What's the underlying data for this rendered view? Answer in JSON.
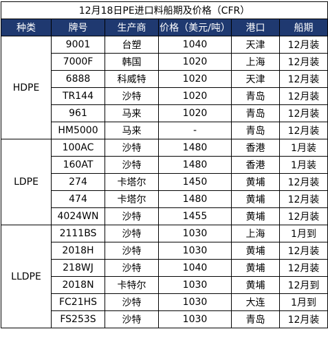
{
  "title": "12月18日PE进口料船期及价格（CFR）",
  "headers": [
    "种类",
    "牌号",
    "生产商",
    "价格（美元/吨）",
    "港口",
    "船期"
  ],
  "groups": [
    {
      "category": "HDPE",
      "rows": [
        {
          "grade": "9001",
          "producer": "台塑",
          "price": "1040",
          "port": "天津",
          "shipping": "12月装"
        },
        {
          "grade": "7000F",
          "producer": "韩国",
          "price": "1020",
          "port": "上海",
          "shipping": "12月装"
        },
        {
          "grade": "6888",
          "producer": "科威特",
          "price": "1020",
          "port": "天津",
          "shipping": "12月装"
        },
        {
          "grade": "TR144",
          "producer": "沙特",
          "price": "1020",
          "port": "青岛",
          "shipping": "12月装"
        },
        {
          "grade": "961",
          "producer": "马来",
          "price": "1020",
          "port": "青岛",
          "shipping": "12月装"
        },
        {
          "grade": "HM5000",
          "producer": "马来",
          "price": "-",
          "port": "青岛",
          "shipping": "12月装"
        }
      ]
    },
    {
      "category": "LDPE",
      "rows": [
        {
          "grade": "100AC",
          "producer": "沙特",
          "price": "1480",
          "port": "香港",
          "shipping": "1月装"
        },
        {
          "grade": "160AT",
          "producer": "沙特",
          "price": "1480",
          "port": "香港",
          "shipping": "1月装"
        },
        {
          "grade": "274",
          "producer": "卡塔尔",
          "price": "1450",
          "port": "黄埔",
          "shipping": "12月装"
        },
        {
          "grade": "474",
          "producer": "卡塔尔",
          "price": "1480",
          "port": "黄埔",
          "shipping": "12月装"
        },
        {
          "grade": "4024WN",
          "producer": "沙特",
          "price": "1455",
          "port": "黄埔",
          "shipping": "12月装"
        }
      ]
    },
    {
      "category": "LLDPE",
      "rows": [
        {
          "grade": "2111BS",
          "producer": "沙特",
          "price": "1030",
          "port": "上海",
          "shipping": "1月到"
        },
        {
          "grade": "2018H",
          "producer": "沙特",
          "price": "1030",
          "port": "黄埔",
          "shipping": "12月装"
        },
        {
          "grade": "218WJ",
          "producer": "沙特",
          "price": "1040",
          "port": "黄埔",
          "shipping": "12月装"
        },
        {
          "grade": "2018N",
          "producer": "卡特尔",
          "price": "1030",
          "port": "黄埔",
          "shipping": "12月到"
        },
        {
          "grade": "FC21HS",
          "producer": "沙特",
          "price": "1030",
          "port": "大连",
          "shipping": "1月到"
        },
        {
          "grade": "FS253S",
          "producer": "沙特",
          "price": "1030",
          "port": "青岛",
          "shipping": "12月装"
        }
      ]
    }
  ]
}
